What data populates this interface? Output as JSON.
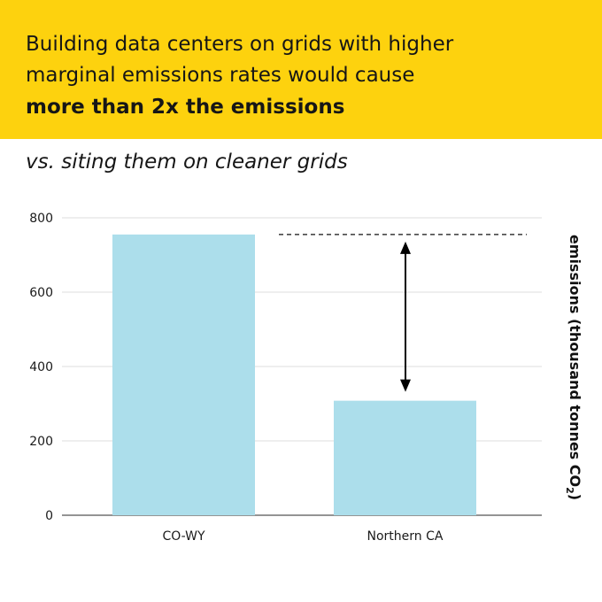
{
  "header": {
    "line1": "Building data centers on grids with higher",
    "line2": "marginal emissions rates would cause",
    "line3": "more than 2x the emissions",
    "background_color": "#fdd20e"
  },
  "subtitle": "vs. siting them on cleaner grids",
  "chart_data": {
    "type": "bar",
    "categories": [
      "CO-WY",
      "Northern CA"
    ],
    "values": [
      755,
      308
    ],
    "ylabel_main": "emissions (thousand tonnes CO",
    "ylabel_sub": "2",
    "ylabel_close": ")",
    "ylim": [
      0,
      800
    ],
    "yticks": [
      0,
      200,
      400,
      600,
      800
    ],
    "grid": true,
    "bar_color": "#acdeeb",
    "annotation": "dashed reference line at CO-WY value with double-headed arrow to Northern CA bar"
  }
}
